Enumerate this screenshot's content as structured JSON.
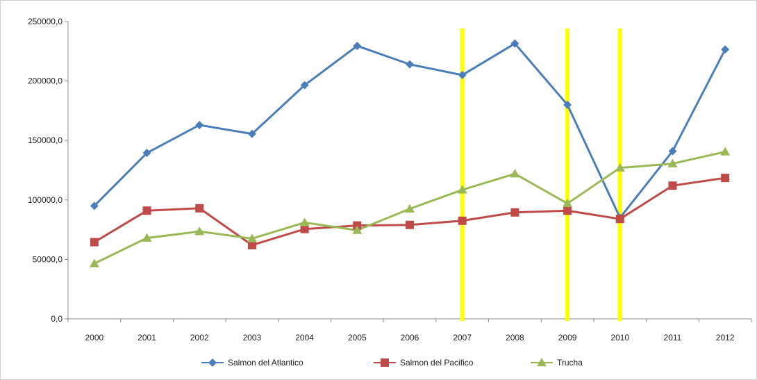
{
  "chart_data": {
    "type": "line",
    "title": "",
    "xlabel": "",
    "ylabel": "",
    "categories": [
      "2000",
      "2001",
      "2002",
      "2003",
      "2004",
      "2005",
      "2006",
      "2007",
      "2008",
      "2009",
      "2010",
      "2011",
      "2012"
    ],
    "ylim": [
      0,
      250000
    ],
    "yticks": [
      0,
      50000,
      100000,
      150000,
      200000,
      250000
    ],
    "ytick_labels": [
      "0,0",
      "50000,0",
      "100000,0",
      "150000,0",
      "200000,0",
      "250000,0"
    ],
    "grid": false,
    "legend_position": "bottom",
    "series": [
      {
        "name": "Salmon del Atlantico",
        "color": "#4a7ebb",
        "marker": "diamond",
        "values": [
          95000,
          139500,
          163000,
          155500,
          196500,
          229500,
          214000,
          205000,
          231500,
          180000,
          85000,
          141000,
          226500
        ]
      },
      {
        "name": "Salmon del Pacifico",
        "color": "#be4b48",
        "marker": "square",
        "values": [
          64500,
          91000,
          93000,
          62000,
          75500,
          78500,
          79000,
          82500,
          89500,
          91000,
          84000,
          112000,
          118500
        ]
      },
      {
        "name": "Trucha",
        "color": "#98b954",
        "marker": "triangle",
        "values": [
          46500,
          68000,
          73500,
          67500,
          81000,
          74500,
          92500,
          108500,
          122000,
          97000,
          127000,
          130500,
          140500
        ]
      }
    ],
    "annotations": {
      "vertical_highlight_lines": [
        "2007",
        "2009",
        "2010"
      ],
      "highlight_color": "#ffff00"
    }
  }
}
